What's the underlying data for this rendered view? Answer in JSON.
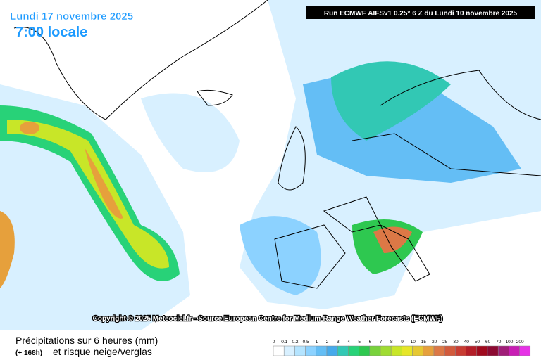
{
  "header": {
    "date": "Lundi 17 novembre 2025",
    "time": "7:00 locale",
    "run": "Run ECMWF AIFSv1 0.25° 6 Z du Lundi 10 novembre 2025"
  },
  "copyright": "Copyright © 2025 Meteociel.fr - Source European Centre for Medium-Range Weather Forecasts (ECMWF)",
  "footer": {
    "title": "Précipitations sur 6 heures (mm)",
    "offset": "(+ 168h)",
    "subtitle": "et risque neige/verglas"
  },
  "legend": {
    "labels": [
      "0",
      "0.1",
      "0.2",
      "0.5",
      "1",
      "2",
      "3",
      "4",
      "5",
      "6",
      "7",
      "8",
      "9",
      "10",
      "15",
      "20",
      "25",
      "30",
      "40",
      "50",
      "60",
      "70",
      "100",
      "200"
    ],
    "colors": [
      "#ffffff",
      "#d8f0ff",
      "#b4e4ff",
      "#8cd2ff",
      "#64bef5",
      "#46aaeb",
      "#32c8b4",
      "#28d278",
      "#2ec850",
      "#78d23c",
      "#a0dc32",
      "#c8e628",
      "#e6e628",
      "#e6c832",
      "#e6a03c",
      "#dc7846",
      "#d25a3c",
      "#c83c32",
      "#b41e28",
      "#a00a1e",
      "#8c0a32",
      "#a01e78",
      "#c81eb4",
      "#e632e6"
    ]
  }
}
